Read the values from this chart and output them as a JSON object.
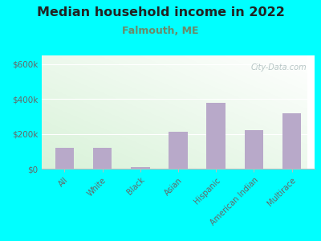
{
  "title": "Median household income in 2022",
  "subtitle": "Falmouth, ME",
  "categories": [
    "All",
    "White",
    "Black",
    "Asian",
    "Hispanic",
    "American Indian",
    "Multirace"
  ],
  "values": [
    120000,
    118000,
    10000,
    210000,
    380000,
    220000,
    320000
  ],
  "bar_color": "#b8a9c9",
  "background_outer": "#00FFFF",
  "background_inner_topleft": "#c8e8c8",
  "background_inner_bottomright": "#f8fff8",
  "title_color": "#222222",
  "subtitle_color": "#6a8a6a",
  "tick_label_color": "#666666",
  "ytick_labels": [
    "$0",
    "$200k",
    "$400k",
    "$600k"
  ],
  "ytick_values": [
    0,
    200000,
    400000,
    600000
  ],
  "ylim": [
    0,
    650000
  ],
  "watermark": "City-Data.com",
  "watermark_color": "#aabbbb"
}
